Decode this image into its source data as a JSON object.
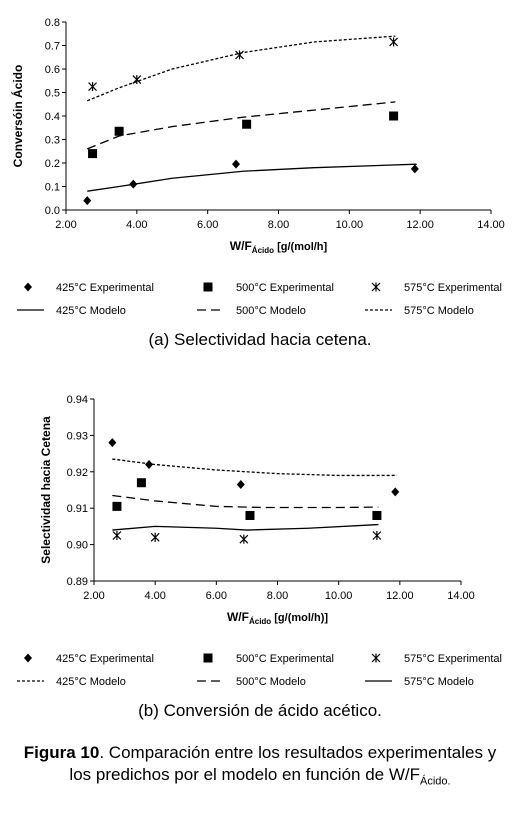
{
  "chart_data": [
    {
      "type": "scatter",
      "ylabel": "Conversóin Ácido",
      "xlabel_main": "W/F",
      "xlabel_sub": "Ácido",
      "xlabel_tail": " [g/(mol/h]",
      "xlim": [
        2,
        14
      ],
      "ylim": [
        0,
        0.8
      ],
      "xticks": [
        "2.00",
        "4.00",
        "6.00",
        "8.00",
        "10.00",
        "12.00",
        "14.00"
      ],
      "yticks": [
        "0.0",
        "0.1",
        "0.2",
        "0.3",
        "0.4",
        "0.5",
        "0.6",
        "0.7",
        "0.8"
      ],
      "series": [
        {
          "name": "425°C Experimental",
          "marker": "diamond",
          "x": [
            2.6,
            3.9,
            6.8,
            11.85
          ],
          "y": [
            0.04,
            0.11,
            0.195,
            0.175
          ]
        },
        {
          "name": "500°C Experimental",
          "marker": "square",
          "x": [
            2.75,
            3.5,
            7.1,
            11.25
          ],
          "y": [
            0.24,
            0.335,
            0.365,
            0.4
          ]
        },
        {
          "name": "575°C Experimental",
          "marker": "asterisk",
          "x": [
            2.75,
            4.0,
            6.9,
            11.25
          ],
          "y": [
            0.525,
            0.555,
            0.66,
            0.715
          ]
        },
        {
          "name": "425°C Modelo",
          "line": "solid",
          "x": [
            2.6,
            3.5,
            5.0,
            7.0,
            9.0,
            11.9
          ],
          "y": [
            0.08,
            0.1,
            0.135,
            0.165,
            0.18,
            0.195
          ]
        },
        {
          "name": "500°C Modelo",
          "line": "dashed",
          "x": [
            2.6,
            3.5,
            5.0,
            7.0,
            9.0,
            11.3
          ],
          "y": [
            0.26,
            0.315,
            0.355,
            0.395,
            0.425,
            0.46
          ]
        },
        {
          "name": "575°C Modelo",
          "line": "dotted",
          "x": [
            2.6,
            3.5,
            5.0,
            7.0,
            9.0,
            11.3
          ],
          "y": [
            0.465,
            0.52,
            0.6,
            0.67,
            0.715,
            0.74
          ]
        }
      ],
      "legend_rows": [
        [
          "425°C Experimental",
          "500°C Experimental",
          "575°C Experimental"
        ],
        [
          "425°C Modelo",
          "500°C Modelo",
          "575°C Modelo"
        ]
      ],
      "legend": "bottom"
    },
    {
      "type": "scatter",
      "ylabel": "Selectividad hacia Cetena",
      "xlabel_main": "W/F",
      "xlabel_sub": "Ácido",
      "xlabel_tail": " [g/(mol/h)]",
      "xlim": [
        2,
        14
      ],
      "ylim": [
        0.89,
        0.94
      ],
      "xticks": [
        "2.00",
        "4.00",
        "6.00",
        "8.00",
        "10.00",
        "12.00",
        "14.00"
      ],
      "yticks": [
        "0.89",
        "0.90",
        "0.91",
        "0.92",
        "0.93",
        "0.94"
      ],
      "series": [
        {
          "name": "425°C Experimental",
          "marker": "diamond",
          "x": [
            2.6,
            3.8,
            6.8,
            11.85
          ],
          "y": [
            0.928,
            0.922,
            0.9165,
            0.9145
          ]
        },
        {
          "name": "500°C Experimental",
          "marker": "square",
          "x": [
            2.75,
            3.55,
            7.1,
            11.25
          ],
          "y": [
            0.9105,
            0.917,
            0.908,
            0.908
          ]
        },
        {
          "name": "575°C Experimental",
          "marker": "asterisk",
          "x": [
            2.75,
            4.0,
            6.9,
            11.25
          ],
          "y": [
            0.9025,
            0.902,
            0.9015,
            0.9025
          ]
        },
        {
          "name": "425°C Modelo",
          "line": "dotted",
          "x": [
            2.6,
            4.0,
            6.0,
            8.0,
            10.0,
            11.9
          ],
          "y": [
            0.9235,
            0.922,
            0.9205,
            0.9195,
            0.919,
            0.919
          ]
        },
        {
          "name": "500°C Modelo",
          "line": "dashed",
          "x": [
            2.6,
            4.0,
            6.0,
            7.5,
            10.0,
            11.3
          ],
          "y": [
            0.9135,
            0.912,
            0.9105,
            0.9102,
            0.9102,
            0.9103
          ]
        },
        {
          "name": "575°C Modelo",
          "line": "solid",
          "x": [
            2.6,
            4.0,
            6.0,
            7.0,
            9.0,
            11.3
          ],
          "y": [
            0.904,
            0.905,
            0.9045,
            0.904,
            0.9045,
            0.9055
          ]
        }
      ],
      "legend_rows": [
        [
          "425°C Experimental",
          "500°C Experimental",
          "575°C Experimental"
        ],
        [
          "425°C Modelo",
          "500°C Modelo",
          "575°C Modelo"
        ]
      ],
      "legend": "bottom"
    }
  ],
  "captions": {
    "a": "(a)   Selectividad hacia cetena.",
    "b": "(b)   Conversión de ácido acético."
  },
  "figure": {
    "label": "Figura 10",
    "text1": ". Comparación entre los resultados experimentales y los predichos por el modelo en función de W/F",
    "sub": "Ácido."
  }
}
